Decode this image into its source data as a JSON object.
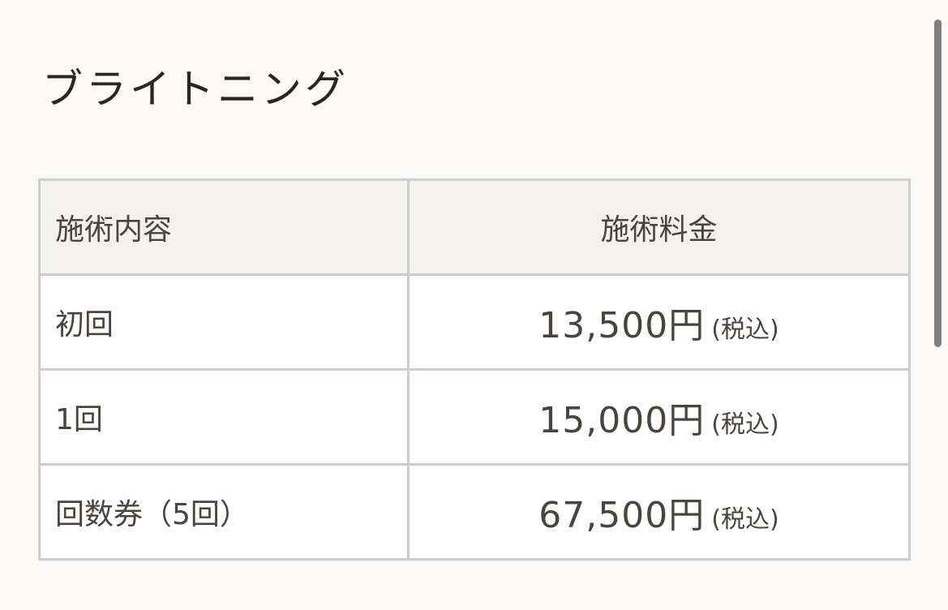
{
  "title": "ブライトニング",
  "table": {
    "headers": [
      "施術内容",
      "施術料金"
    ],
    "rows": [
      {
        "item": "初回",
        "price": "13,500円",
        "tax": "(税込)"
      },
      {
        "item": "1回",
        "price": "15,000円",
        "tax": "(税込)"
      },
      {
        "item": "回数券（5回）",
        "price": "67,500円",
        "tax": "(税込)"
      }
    ]
  }
}
